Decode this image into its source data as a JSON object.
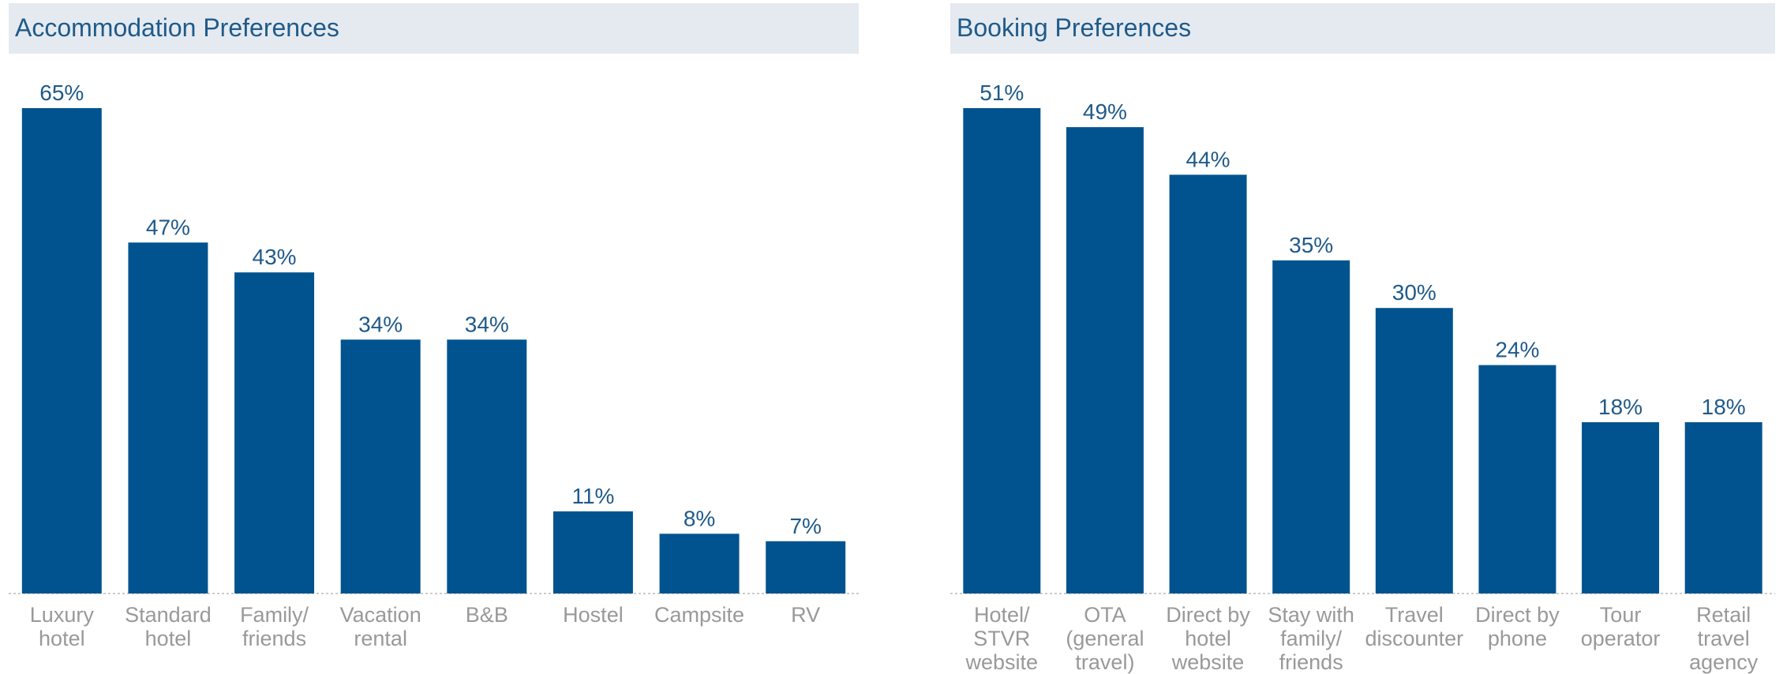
{
  "chart_data": [
    {
      "type": "bar",
      "title": "Accommodation Preferences",
      "categories": [
        "Luxury\nhotel",
        "Standard\nhotel",
        "Family/\nfriends",
        "Vacation\nrental",
        "B&B",
        "Hostel",
        "Campsite",
        "RV"
      ],
      "values": [
        65,
        47,
        43,
        34,
        34,
        11,
        8,
        7
      ],
      "value_labels": [
        "65%",
        "47%",
        "43%",
        "34%",
        "34%",
        "11%",
        "8%",
        "7%"
      ],
      "color": "#00538f"
    },
    {
      "type": "bar",
      "title": "Booking Preferences",
      "categories": [
        "Hotel/\nSTVR\nwebsite",
        "OTA\n(general\ntravel)",
        "Direct by\nhotel\nwebsite",
        "Stay with\nfamily/\nfriends",
        "Travel\ndiscounter",
        "Direct by\nphone",
        "Tour\noperator",
        "Retail\ntravel\nagency"
      ],
      "values": [
        51,
        49,
        44,
        35,
        30,
        24,
        18,
        18
      ],
      "value_labels": [
        "51%",
        "49%",
        "44%",
        "35%",
        "30%",
        "24%",
        "18%",
        "18%"
      ],
      "color": "#00538f"
    }
  ]
}
